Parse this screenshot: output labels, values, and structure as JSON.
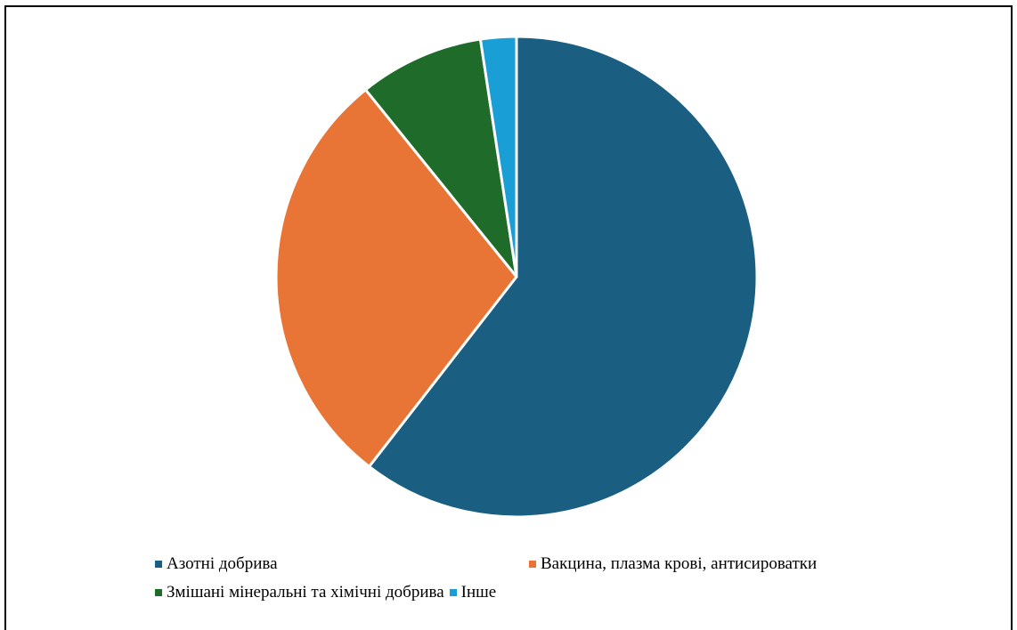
{
  "chart_data": {
    "type": "pie",
    "title": "",
    "slices": [
      {
        "label": "Азотні добрива",
        "value": 60.5,
        "color": "#1a5f82"
      },
      {
        "label": "Вакцина, плазма крові, антисироватки",
        "value": 28.7,
        "color": "#e87435"
      },
      {
        "label": "Змішані мінеральні та хімічні добрива",
        "value": 8.4,
        "color": "#1f6b2a"
      },
      {
        "label": "Інше",
        "value": 2.4,
        "color": "#1a9ed6"
      }
    ],
    "legend_position": "bottom",
    "start_angle": "top",
    "direction": "clockwise"
  }
}
